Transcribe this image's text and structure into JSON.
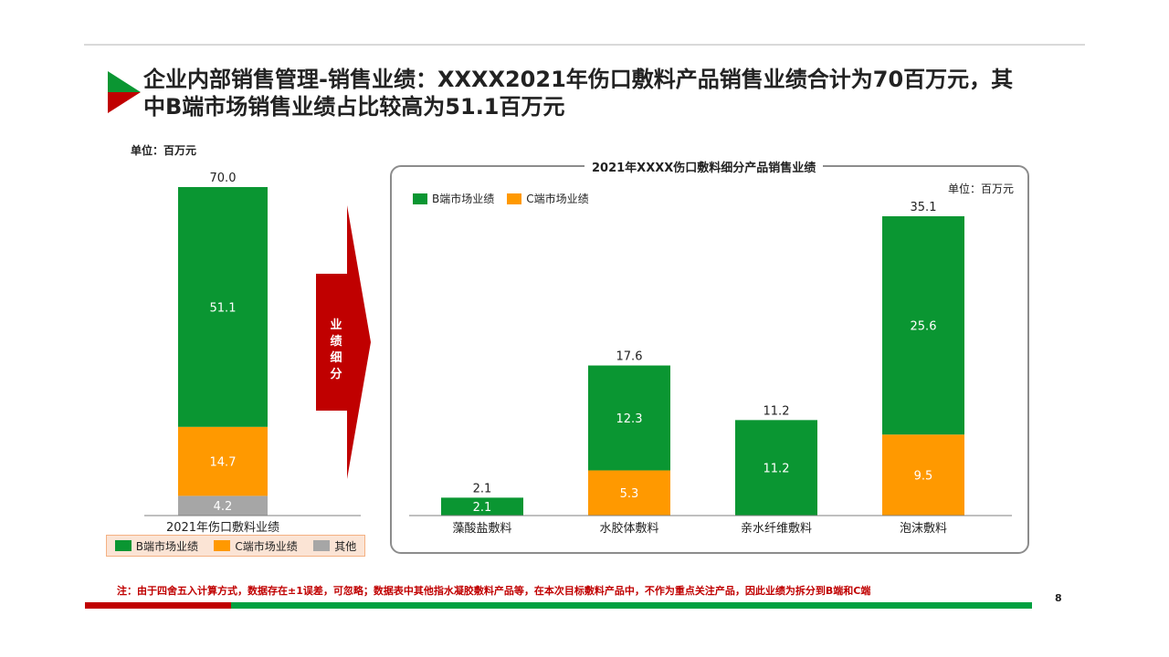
{
  "title": "企业内部销售管理-销售业绩：XXXX2021年伤口敷料产品销售业绩合计为70百万元，其中B端市场销售业绩占比较高为51.1百万元",
  "left_unit": "单位：百万元",
  "arrow_label": "业\n绩\n细\n分",
  "right_panel_title": "2021年XXXX伤口敷料细分产品销售业绩",
  "right_unit": "单位：百万元",
  "note": "注：由于四舍五入计算方式，数据存在±1误差，可忽略；数据表中其他指水凝胶敷料产品等，在本次目标敷料产品中，不作为重点关注产品，因此业绩为拆分到B端和C端",
  "page_number": "8",
  "colors": {
    "green": "#0a9632",
    "orange": "#ff9900",
    "gray": "#a6a6a6",
    "red": "#c00000"
  },
  "legend_left": [
    {
      "label": "B端市场业绩",
      "color": "#0a9632"
    },
    {
      "label": "C端市场业绩",
      "color": "#ff9900"
    },
    {
      "label": "其他",
      "color": "#a6a6a6"
    }
  ],
  "legend_right": [
    {
      "label": "B端市场业绩",
      "color": "#0a9632"
    },
    {
      "label": "C端市场业绩",
      "color": "#ff9900"
    }
  ],
  "chart_data": [
    {
      "type": "bar",
      "stacked": true,
      "title": "",
      "categories": [
        "2021年伤口敷料业绩"
      ],
      "series": [
        {
          "name": "其他",
          "values": [
            4.2
          ]
        },
        {
          "name": "C端市场业绩",
          "values": [
            14.7
          ]
        },
        {
          "name": "B端市场业绩",
          "values": [
            51.1
          ]
        }
      ],
      "totals": [
        "70.0"
      ],
      "ylim": [
        0,
        70
      ]
    },
    {
      "type": "bar",
      "stacked": true,
      "title": "2021年XXXX伤口敷料细分产品销售业绩",
      "categories": [
        "藻酸盐敷料",
        "水胶体敷料",
        "亲水纤维敷料",
        "泡沫敷料"
      ],
      "series": [
        {
          "name": "C端市场业绩",
          "values": [
            0,
            5.3,
            0,
            9.5
          ]
        },
        {
          "name": "B端市场业绩",
          "values": [
            2.1,
            12.3,
            11.2,
            25.6
          ]
        }
      ],
      "totals": [
        "2.1",
        "17.6",
        "11.2",
        "35.1"
      ],
      "ylim": [
        0,
        35.1
      ]
    }
  ]
}
